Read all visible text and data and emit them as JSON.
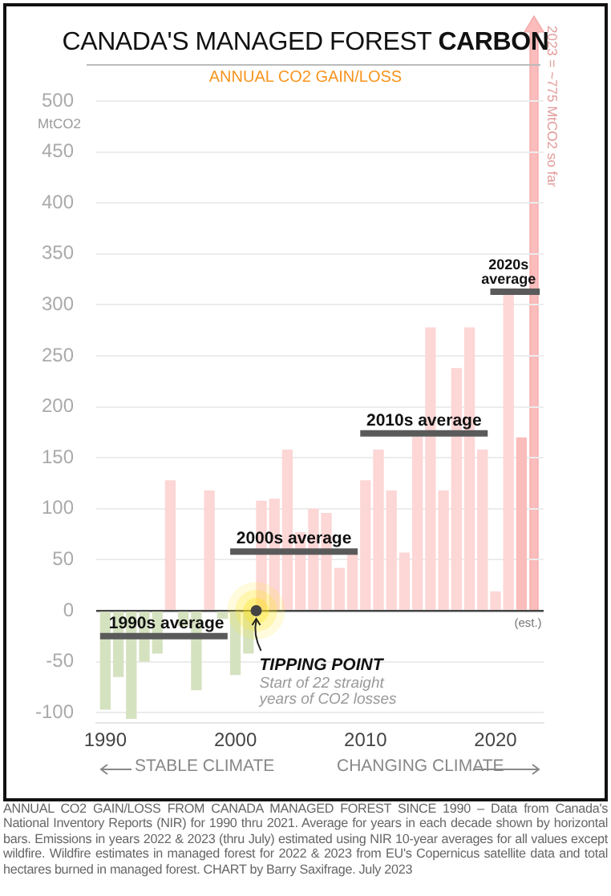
{
  "chart_data": {
    "type": "bar",
    "title": "CANADA'S MANAGED FOREST CARBON",
    "subtitle": "ANNUAL CO2 GAIN/LOSS",
    "ylabel": "MtCO2",
    "x": [
      1990,
      1991,
      1992,
      1993,
      1994,
      1995,
      1996,
      1997,
      1998,
      1999,
      2000,
      2001,
      2002,
      2003,
      2004,
      2005,
      2006,
      2007,
      2008,
      2009,
      2010,
      2011,
      2012,
      2013,
      2014,
      2015,
      2016,
      2017,
      2018,
      2019,
      2020,
      2021,
      2022
    ],
    "series": [
      {
        "values": [
          -97,
          -65,
          -106,
          -50,
          -42,
          128,
          -15,
          -78,
          118,
          -8,
          -63,
          -42,
          108,
          110,
          158,
          77,
          100,
          96,
          42,
          57,
          128,
          158,
          118,
          57,
          171,
          278,
          118,
          238,
          278,
          158,
          19,
          310,
          170
        ],
        "colors": [
          "#d5e2c0",
          "#d5e2c0",
          "#d5e2c0",
          "#d5e2c0",
          "#d5e2c0",
          "#fdd6d6",
          "#d5e2c0",
          "#d5e2c0",
          "#fdd6d6",
          "#d5e2c0",
          "#d5e2c0",
          "#d5e2c0",
          "#fdd6d6",
          "#fdd6d6",
          "#fdd6d6",
          "#fdd6d6",
          "#fdd6d6",
          "#fdd6d6",
          "#fdd6d6",
          "#fdd6d6",
          "#fdd6d6",
          "#fdd6d6",
          "#fdd6d6",
          "#fdd6d6",
          "#fdd6d6",
          "#fdd6d6",
          "#fdd6d6",
          "#fdd6d6",
          "#fdd6d6",
          "#fdd6d6",
          "#fdd6d6",
          "#fdd6d6",
          "#fbbcbc"
        ]
      },
      {
        "type": "line",
        "x": [
          1989.6,
          1999.4
        ],
        "values": [
          -25,
          -25
        ],
        "color": "#5a5a5a"
      },
      {
        "type": "line",
        "x": [
          1999.6,
          2009.4
        ],
        "values": [
          58,
          58
        ],
        "color": "#5a5a5a"
      },
      {
        "type": "line",
        "x": [
          2009.6,
          2019.4
        ],
        "values": [
          174,
          174
        ],
        "color": "#5a5a5a"
      },
      {
        "type": "line",
        "x": [
          2019.6,
          2023.4
        ],
        "values": [
          313,
          313
        ],
        "color": "#5a5a5a"
      }
    ],
    "xlim": [
      1989.3,
      2023.7
    ],
    "xticks": [
      1990,
      2000,
      2010,
      2020
    ],
    "ylim": [
      -110,
      500
    ],
    "yticks": [
      -100,
      -50,
      0,
      50,
      100,
      150,
      200,
      250,
      300,
      350,
      400,
      450,
      500
    ],
    "grid": "y",
    "annotations": [
      {
        "text": "1990s average",
        "x": 1994.7,
        "y": -25
      },
      {
        "text": "2000s average",
        "x": 2004.5,
        "y": 58
      },
      {
        "text": "2010s average",
        "x": 2014.5,
        "y": 174
      },
      {
        "text": "2020s average",
        "x": 2021.0,
        "y": 313
      },
      {
        "text": "TIPPING POINT",
        "x": 2001.6,
        "y": 0
      },
      "Start of 22 straight years of CO2 losses",
      {
        "text": "(est.)",
        "x": 2022.5,
        "y": 0
      },
      "2023 = ~775 MtCO2 so far",
      "STABLE CLIMATE",
      "CHANGING CLIMATE",
      "ANNUAL CO2 GAIN/LOSS FROM CANADA MANAGED FOREST SINCE 1990 – Data from Canada's National Inventory Reports (NIR) for 1990 thru 2021. Average for years in each decade shown by horizontal bars. Emissions in years 2022 & 2023 (thru July) estimated using NIR 10-year averages for all values except wildfire. Wildfire estimates in managed forest for 2022 & 2023 from EU's Copernicus satellite data and total hectares burned in managed forest. CHART by Barry Saxifrage. July 2023"
    ]
  }
}
